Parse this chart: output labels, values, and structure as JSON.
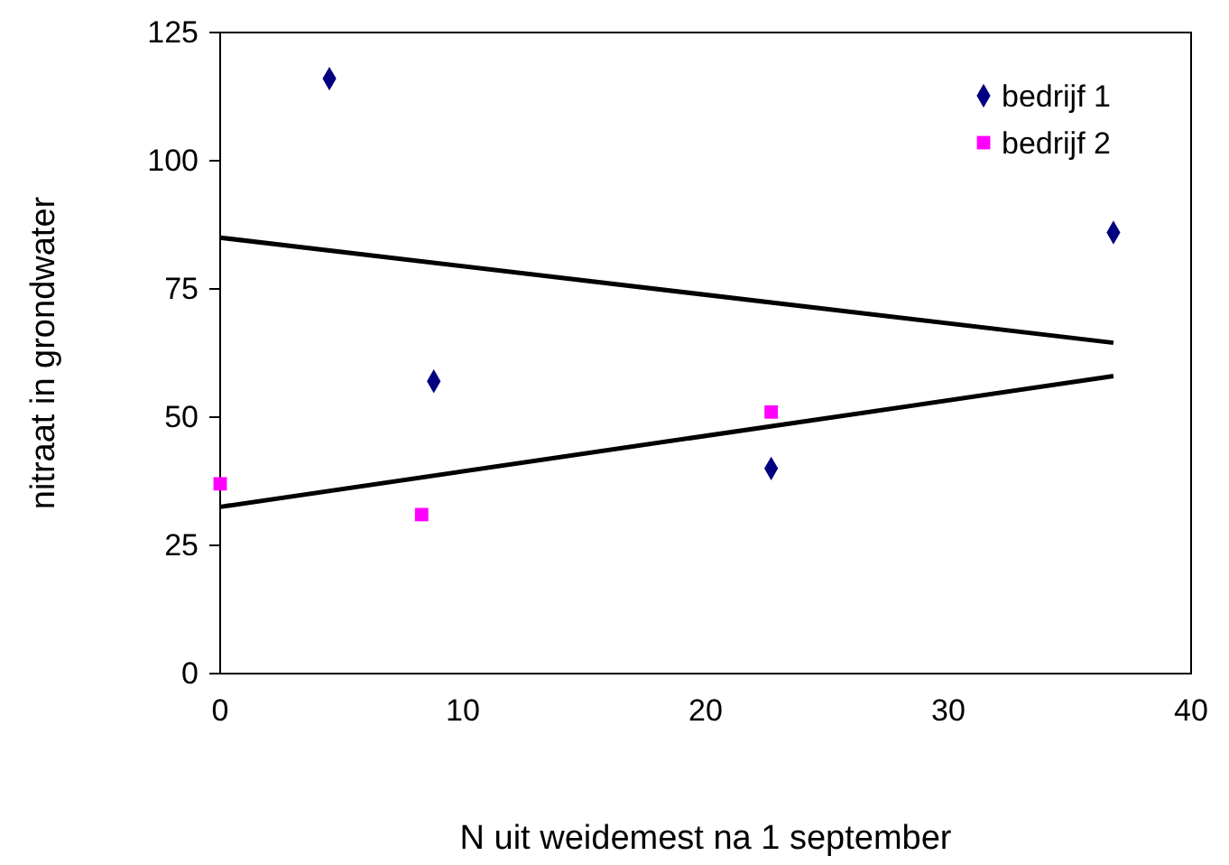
{
  "chart_data": {
    "type": "scatter",
    "xlabel": "N uit weidemest na 1 september",
    "ylabel": "nitraat in grondwater",
    "xlim": [
      0,
      40
    ],
    "xticks": [
      0,
      10,
      20,
      30,
      40
    ],
    "ylim": [
      0,
      125
    ],
    "yticks": [
      0,
      25,
      50,
      75,
      100,
      125
    ],
    "grid": false,
    "legend": "top right",
    "series": [
      {
        "name": "bedrijf 1",
        "color": "#000080",
        "marker": "diamond",
        "x": [
          4.5,
          8.8,
          22.7,
          36.8
        ],
        "values": [
          116,
          57,
          40,
          86
        ]
      },
      {
        "name": "bedrijf 2",
        "color": "#ff00ff",
        "marker": "square",
        "x": [
          0,
          8.3,
          22.7
        ],
        "values": [
          37,
          31,
          51
        ]
      },
      {
        "type": "line",
        "color": "#000000",
        "x": [
          0,
          36.8
        ],
        "values": [
          85,
          64.5
        ]
      },
      {
        "type": "line",
        "color": "#000000",
        "x": [
          0,
          36.8
        ],
        "values": [
          32.5,
          58
        ]
      }
    ]
  }
}
